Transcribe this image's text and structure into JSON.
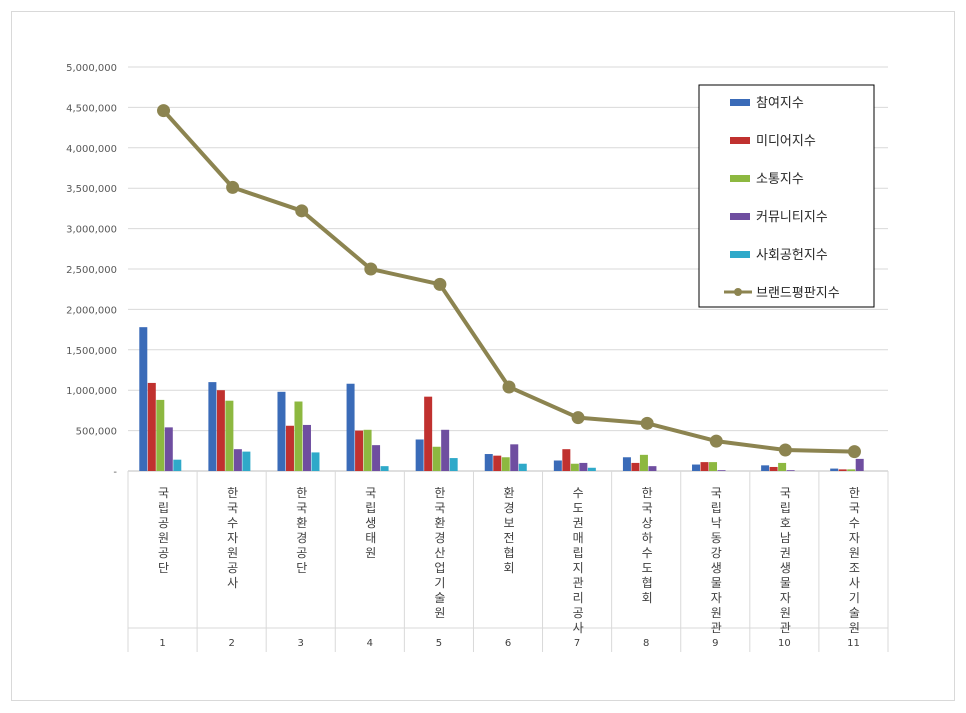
{
  "chart_data": {
    "type": "bar",
    "title": "",
    "xlabel": "",
    "ylabel": "",
    "ylim": [
      0,
      5000000
    ],
    "yticks": [
      "-",
      "500,000",
      "1,000,000",
      "1,500,000",
      "2,000,000",
      "2,500,000",
      "3,000,000",
      "3,500,000",
      "4,000,000",
      "4,500,000",
      "5,000,000"
    ],
    "grid": true,
    "legend_position": "top-right",
    "categories": [
      {
        "index": "1",
        "name": "국립공원공단"
      },
      {
        "index": "2",
        "name": "한국수자원공사"
      },
      {
        "index": "3",
        "name": "한국환경공단"
      },
      {
        "index": "4",
        "name": "국립생태원"
      },
      {
        "index": "5",
        "name": "한국환경산업기술원"
      },
      {
        "index": "6",
        "name": "환경보전협회"
      },
      {
        "index": "7",
        "name": "수도권매립지관리공사"
      },
      {
        "index": "8",
        "name": "한국상하수도협회"
      },
      {
        "index": "9",
        "name": "국립낙동강생물자원관"
      },
      {
        "index": "10",
        "name": "국립호남권생물자원관"
      },
      {
        "index": "11",
        "name": "한국수자원조사기술원"
      }
    ],
    "series": [
      {
        "name": "참여지수",
        "type": "bar",
        "color": "#3a6bb8",
        "values": [
          1780000,
          1100000,
          980000,
          1080000,
          390000,
          210000,
          130000,
          170000,
          80000,
          70000,
          30000
        ]
      },
      {
        "name": "미디어지수",
        "type": "bar",
        "color": "#c0312f",
        "values": [
          1090000,
          1000000,
          560000,
          500000,
          920000,
          190000,
          270000,
          100000,
          110000,
          50000,
          20000
        ]
      },
      {
        "name": "소통지수",
        "type": "bar",
        "color": "#8db840",
        "values": [
          880000,
          870000,
          860000,
          510000,
          300000,
          170000,
          90000,
          200000,
          110000,
          100000,
          20000
        ]
      },
      {
        "name": "커뮤니티지수",
        "type": "bar",
        "color": "#6f4ea0",
        "values": [
          540000,
          270000,
          570000,
          320000,
          510000,
          330000,
          100000,
          60000,
          10000,
          10000,
          150000
        ]
      },
      {
        "name": "사회공헌지수",
        "type": "bar",
        "color": "#2fa9c9",
        "values": [
          140000,
          240000,
          230000,
          60000,
          160000,
          90000,
          40000,
          0,
          0,
          0,
          0
        ]
      },
      {
        "name": "브랜드평판지수",
        "type": "line",
        "color": "#8c8450",
        "values": [
          4460000,
          3510000,
          3220000,
          2500000,
          2310000,
          1040000,
          660000,
          590000,
          370000,
          260000,
          240000
        ]
      }
    ]
  }
}
